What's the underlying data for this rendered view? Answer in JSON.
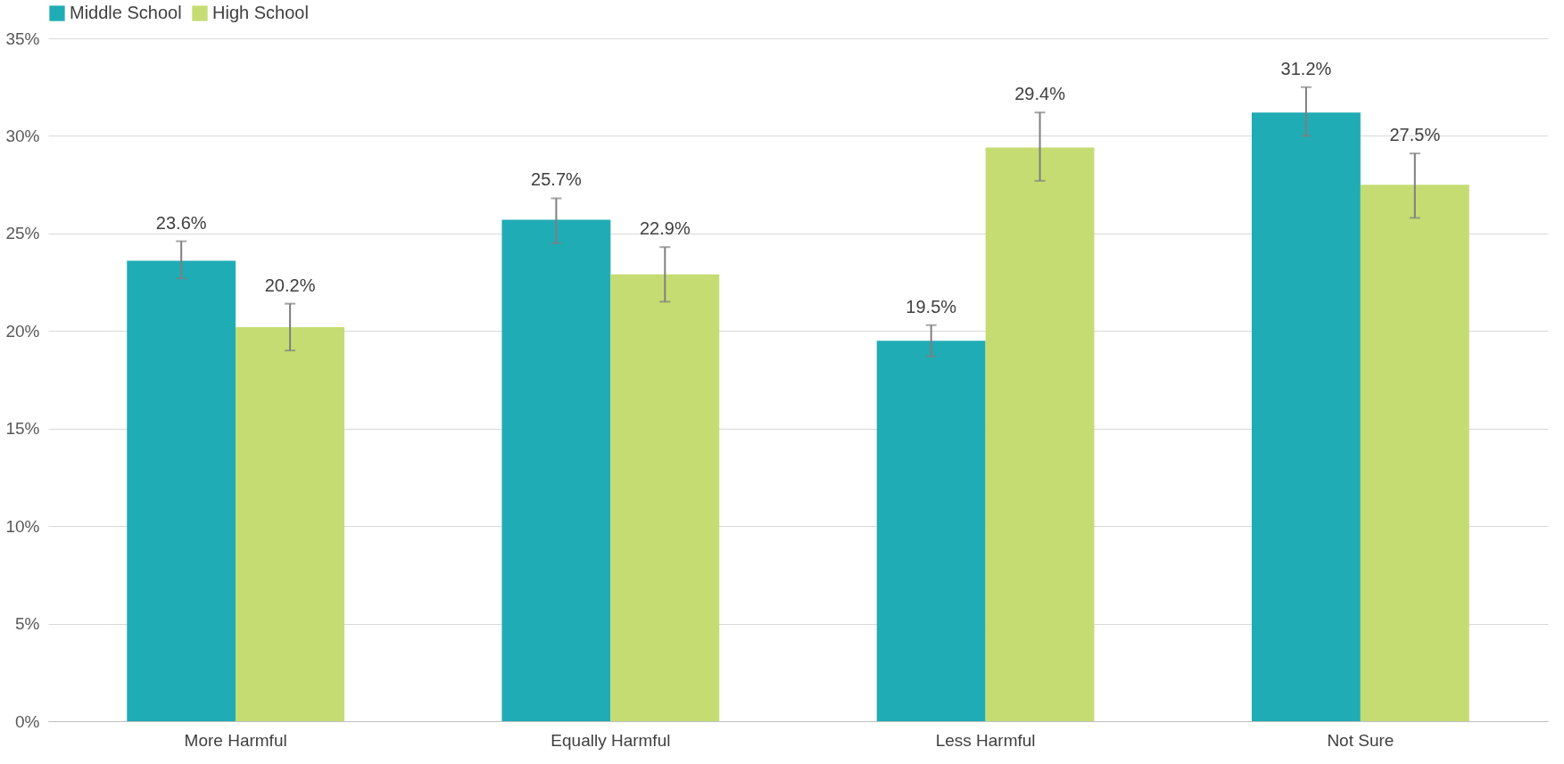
{
  "chart_data": {
    "type": "bar",
    "categories": [
      "More Harmful",
      "Equally Harmful",
      "Less Harmful",
      "Not Sure"
    ],
    "series": [
      {
        "name": "Middle School",
        "color": "#20acb5",
        "values": [
          23.6,
          25.7,
          19.5,
          31.2
        ],
        "errors": [
          [
            22.7,
            24.6
          ],
          [
            24.5,
            26.8
          ],
          [
            18.7,
            20.3
          ],
          [
            30.0,
            32.5
          ]
        ],
        "value_labels": [
          "23.6%",
          "25.7%",
          "19.5%",
          "31.2%"
        ]
      },
      {
        "name": "High School",
        "color": "#c5dc72",
        "values": [
          20.2,
          22.9,
          29.4,
          27.5
        ],
        "errors": [
          [
            19.0,
            21.4
          ],
          [
            21.5,
            24.3
          ],
          [
            27.7,
            31.2
          ],
          [
            25.8,
            29.1
          ]
        ],
        "value_labels": [
          "20.2%",
          "22.9%",
          "29.4%",
          "27.5%"
        ]
      }
    ],
    "ylim": [
      0,
      35
    ],
    "yticks": [
      {
        "value": 0,
        "label": "0%"
      },
      {
        "value": 5,
        "label": "5%"
      },
      {
        "value": 10,
        "label": "10%"
      },
      {
        "value": 15,
        "label": "15%"
      },
      {
        "value": 20,
        "label": "20%"
      },
      {
        "value": 25,
        "label": "25%"
      },
      {
        "value": 30,
        "label": "30%"
      },
      {
        "value": 35,
        "label": "35%"
      }
    ],
    "grid": "y",
    "legend": "top"
  }
}
